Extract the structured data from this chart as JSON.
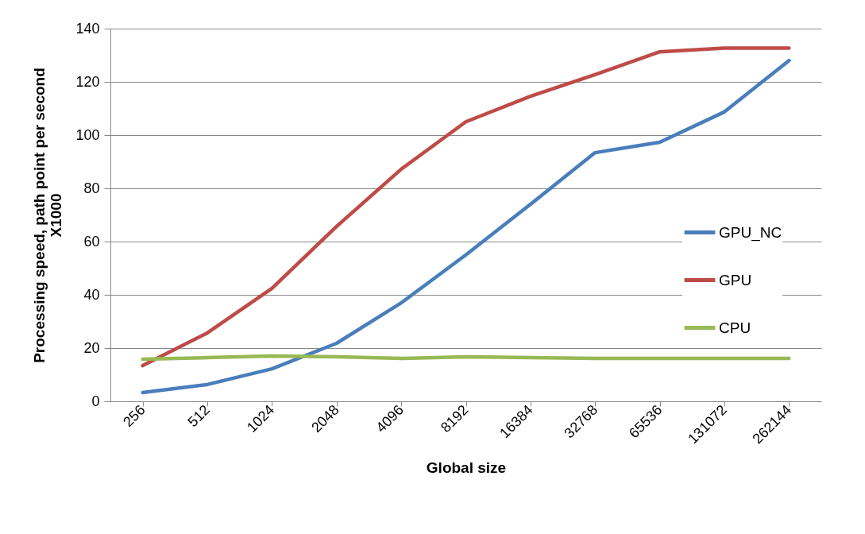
{
  "chart_data": {
    "type": "line",
    "xlabel": "Global size",
    "ylabel": "Processing speed, path point per second X1000",
    "categories": [
      "256",
      "512",
      "1024",
      "2048",
      "4096",
      "8192",
      "16384",
      "32768",
      "65536",
      "131072",
      "262144"
    ],
    "series": [
      {
        "name": "GPU_NC",
        "color": "#4a7ebb",
        "values": [
          3.3,
          6.3,
          12.2,
          21.8,
          37,
          55,
          74,
          93.4,
          97.3,
          108.7,
          128
        ]
      },
      {
        "name": "GPU",
        "color": "#be4b48",
        "values": [
          13.4,
          25.7,
          42.4,
          65.7,
          87.2,
          105,
          114.6,
          122.7,
          131.3,
          132.7,
          132.7
        ]
      },
      {
        "name": "CPU",
        "color": "#98b954",
        "values": [
          15.8,
          16.4,
          17,
          16.7,
          16.1,
          16.7,
          16.4,
          16.1,
          16.1,
          16.1,
          16.1
        ]
      }
    ],
    "ylim": [
      0,
      140
    ],
    "yticks": [
      0,
      20,
      40,
      60,
      80,
      100,
      120,
      140
    ],
    "grid": "y",
    "legend": "right",
    "marker": "none",
    "line_style": "solid"
  }
}
